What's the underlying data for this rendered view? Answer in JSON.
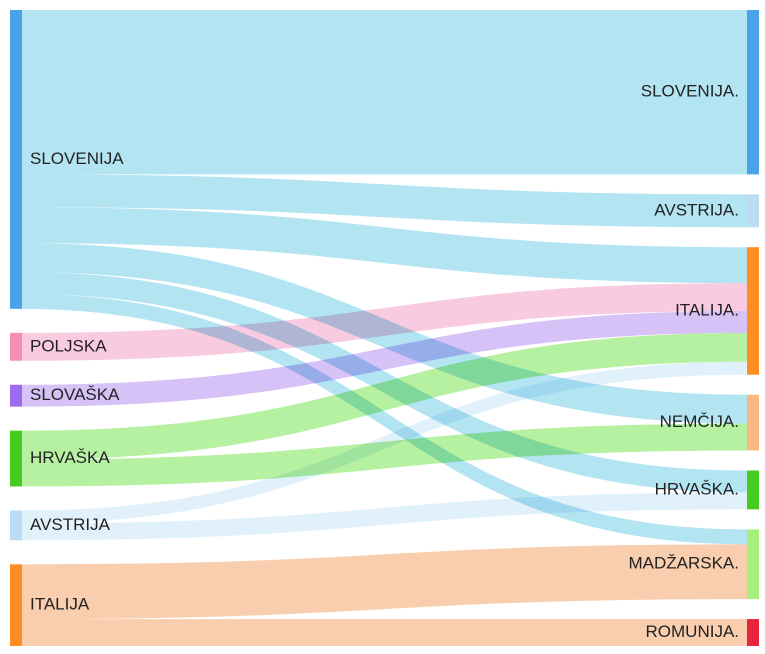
{
  "chart_data": {
    "type": "sankey",
    "sources": [
      {
        "id": "s_slovenija",
        "label": "SLOVENIJA",
        "color": "#4aa3e8"
      },
      {
        "id": "s_poljska",
        "label": "POLJSKA",
        "color": "#f48fb7"
      },
      {
        "id": "s_slovaska",
        "label": "SLOVAŠKA",
        "color": "#9b6cf0"
      },
      {
        "id": "s_hrvaska",
        "label": "HRVAŠKA",
        "color": "#45cc1f"
      },
      {
        "id": "s_avstrija",
        "label": "AVSTRIJA",
        "color": "#bcdcf5"
      },
      {
        "id": "s_italija",
        "label": "ITALIJA",
        "color": "#ff8d23"
      }
    ],
    "targets": [
      {
        "id": "t_slovenija",
        "label": "SLOVENIJA.",
        "color": "#4aa3e8"
      },
      {
        "id": "t_avstrija",
        "label": "AVSTRIJA.",
        "color": "#bcdcf5"
      },
      {
        "id": "t_italija",
        "label": "ITALIJA.",
        "color": "#ff8d23"
      },
      {
        "id": "t_nemcija",
        "label": "NEMČIJA.",
        "color": "#f9b882"
      },
      {
        "id": "t_hrvaska",
        "label": "HRVAŠKA.",
        "color": "#45cc1f"
      },
      {
        "id": "t_madzarska",
        "label": "MADŽARSKA.",
        "color": "#a6ef7b"
      },
      {
        "id": "t_romunija",
        "label": "ROMUNIJA.",
        "color": "#e8243d"
      }
    ],
    "links": [
      {
        "source": "s_slovenija",
        "target": "t_slovenija",
        "value": 165,
        "color": "#a6dff0"
      },
      {
        "source": "s_slovenija",
        "target": "t_avstrija",
        "value": 33,
        "color": "#a6dff0"
      },
      {
        "source": "s_slovenija",
        "target": "t_italija",
        "value": 36,
        "color": "#a6dff0"
      },
      {
        "source": "s_slovenija",
        "target": "t_nemcija",
        "value": 29,
        "color": "#a6dff0"
      },
      {
        "source": "s_slovenija",
        "target": "t_hrvaska",
        "value": 22,
        "color": "#a6dff0"
      },
      {
        "source": "s_slovenija",
        "target": "t_madzarska",
        "value": 15,
        "color": "#a6dff0"
      },
      {
        "source": "s_poljska",
        "target": "t_italija",
        "value": 28,
        "color": "#f7c2dc"
      },
      {
        "source": "s_slovaska",
        "target": "t_italija",
        "value": 22,
        "color": "#cfb7f6"
      },
      {
        "source": "s_hrvaska",
        "target": "t_italija",
        "value": 29,
        "color": "#a8ef90"
      },
      {
        "source": "s_hrvaska",
        "target": "t_nemcija",
        "value": 27,
        "color": "#a8ef90"
      },
      {
        "source": "s_avstrija",
        "target": "t_italija",
        "value": 13,
        "color": "#dceefa"
      },
      {
        "source": "s_avstrija",
        "target": "t_hrvaska",
        "value": 17,
        "color": "#dceefa"
      },
      {
        "source": "s_italija",
        "target": "t_madzarska",
        "value": 55,
        "color": "#f8c5a0"
      },
      {
        "source": "s_italija",
        "target": "t_romunija",
        "value": 27,
        "color": "#f8c5a0"
      }
    ]
  }
}
